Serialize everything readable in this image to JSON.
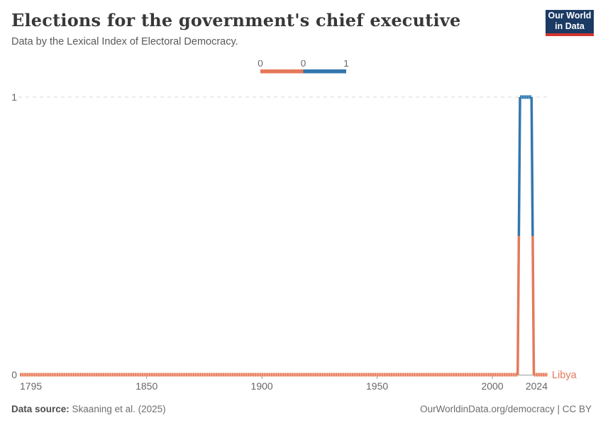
{
  "header": {
    "title": "Elections for the government's chief executive",
    "subtitle": "Data by the Lexical Index of Electoral Democracy.",
    "logo": {
      "line1": "Our World",
      "line2": "in Data"
    }
  },
  "legend": {
    "tick_labels": [
      "0",
      "0",
      "1"
    ]
  },
  "chart_data": {
    "type": "line",
    "title": "Elections for the government's chief executive",
    "entity": "Libya",
    "entity_label": "Libya",
    "xlim": [
      1795,
      2024
    ],
    "ylim": [
      0,
      1
    ],
    "x_ticks": [
      1795,
      1850,
      1900,
      1950,
      2000,
      2024
    ],
    "y_ticks": [
      0,
      1
    ],
    "series": [
      {
        "name": "Libya",
        "segments": [
          {
            "from": 1795,
            "to": 2011,
            "value": 0
          },
          {
            "from": 2012,
            "to": 2017,
            "value": 1
          },
          {
            "from": 2018,
            "to": 2024,
            "value": 0
          }
        ]
      }
    ],
    "value_colors": {
      "0": "#e5795a",
      "1": "#3377ae"
    },
    "value_colors_light": {
      "0": "#f4a98f",
      "1": "#5b97c5"
    },
    "grid_color": "#d7d7d7",
    "axis_color": "#999999",
    "tick_label_color": "#666666"
  },
  "footer": {
    "source_label": "Data source:",
    "source_value": "Skaaning et al. (2025)",
    "credit": "OurWorldinData.org/democracy | CC BY"
  }
}
